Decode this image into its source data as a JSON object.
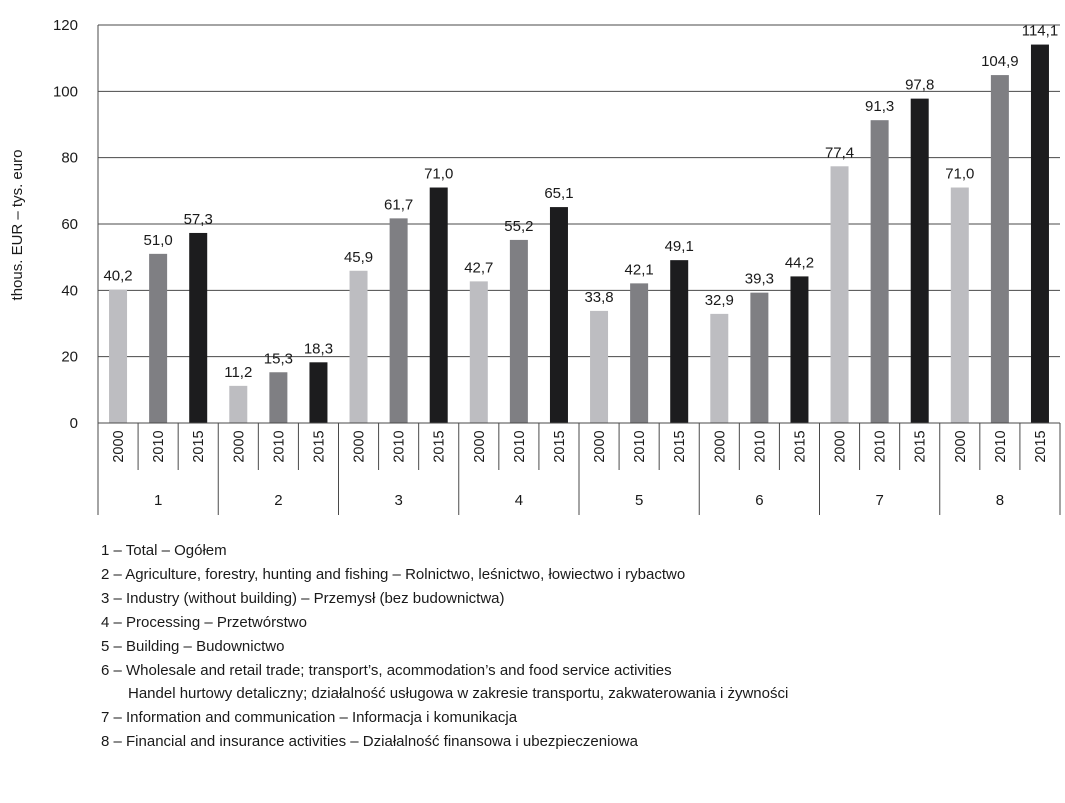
{
  "chart_data": {
    "type": "bar",
    "ylabel": "thous. EUR – tys. euro",
    "ylim": [
      0,
      120
    ],
    "yticks": [
      "0",
      "20",
      "40",
      "60",
      "80",
      "100",
      "120"
    ],
    "grid": true,
    "groups": [
      "1",
      "2",
      "3",
      "4",
      "5",
      "6",
      "7",
      "8"
    ],
    "years": [
      "2000",
      "2010",
      "2015"
    ],
    "colors": [
      "#bdbdc1",
      "#7f7f83",
      "#1c1c1e"
    ],
    "series": [
      {
        "values": [
          40.2,
          11.2,
          45.9,
          42.7,
          33.8,
          32.9,
          77.4,
          71.0
        ],
        "labels": [
          "40,2",
          "11,2",
          "45,9",
          "42,7",
          "33,8",
          "32,9",
          "77,4",
          "71,0"
        ]
      },
      {
        "values": [
          51.0,
          15.3,
          61.7,
          55.2,
          42.1,
          39.3,
          91.3,
          104.9
        ],
        "labels": [
          "51,0",
          "15,3",
          "61,7",
          "55,2",
          "42,1",
          "39,3",
          "91,3",
          "104,9"
        ]
      },
      {
        "values": [
          57.3,
          18.3,
          71.0,
          65.1,
          49.1,
          44.2,
          97.8,
          114.1
        ],
        "labels": [
          "57,3",
          "18,3",
          "71,0",
          "65,1",
          "49,1",
          "44,2",
          "97,8",
          "114,1"
        ]
      }
    ]
  },
  "legend": {
    "line1": "1 – Total – Ogółem",
    "line2": "2 – Agriculture, forestry, hunting and fishing – Rolnictwo, leśnictwo, łowiectwo i rybactwo",
    "line3": "3 – Industry (without building) – Przemysł (bez budownictwa)",
    "line4": "4 – Processing – Przetwórstwo",
    "line5": "5 – Building – Budownictwo",
    "line6": "6 – Wholesale and retail trade; transport’s, acommodation’s and food service activities",
    "line6b": "Handel hurtowy detaliczny; działalność usługowa w zakresie transportu, zakwaterowania i żywności",
    "line7": "7 – Information and communication – Informacja i komunikacja",
    "line8": "8 – Financial and insurance activities – Działalność finansowa i ubezpieczeniowa"
  }
}
